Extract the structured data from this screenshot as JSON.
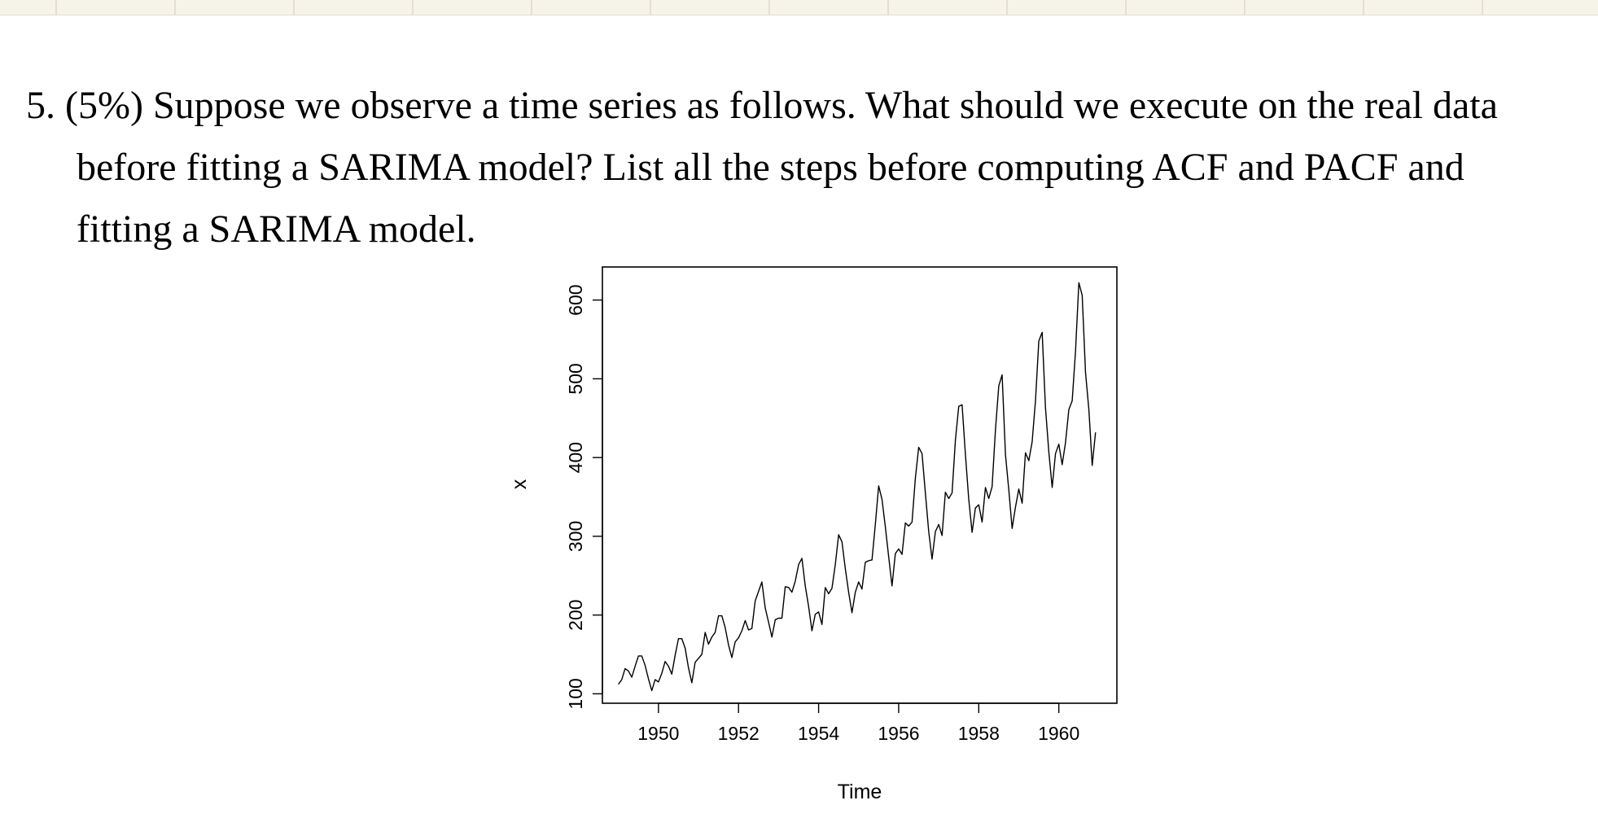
{
  "question": {
    "line1": "5. (5%) Suppose we observe a time series as follows. What should we execute on the real data",
    "line2": "before fitting a SARIMA model? List all the steps before computing ACF and PACF and",
    "line3": "fitting a SARIMA model."
  },
  "chart_data": {
    "type": "line",
    "title": "",
    "xlabel": "Time",
    "ylabel": "x",
    "xlim": [
      1948.6,
      1961.45
    ],
    "ylim": [
      88,
      642
    ],
    "x_ticks": [
      "1950",
      "1952",
      "1954",
      "1956",
      "1958",
      "1960"
    ],
    "y_ticks": [
      "100",
      "200",
      "300",
      "400",
      "500",
      "600"
    ],
    "grid": false,
    "legend": "none",
    "x_start": 1949,
    "frequency": 12,
    "series": [
      {
        "values": [
          112,
          118,
          132,
          129,
          121,
          135,
          148,
          148,
          136,
          119,
          104,
          118,
          115,
          126,
          141,
          135,
          125,
          149,
          170,
          170,
          158,
          133,
          114,
          140,
          145,
          150,
          178,
          163,
          172,
          178,
          199,
          199,
          184,
          162,
          146,
          166,
          171,
          180,
          193,
          181,
          183,
          218,
          230,
          242,
          209,
          191,
          172,
          194,
          196,
          196,
          236,
          235,
          229,
          243,
          264,
          272,
          237,
          211,
          180,
          201,
          204,
          188,
          235,
          227,
          234,
          264,
          302,
          293,
          259,
          229,
          203,
          229,
          242,
          233,
          267,
          269,
          270,
          315,
          364,
          347,
          312,
          274,
          237,
          278,
          284,
          277,
          317,
          313,
          318,
          374,
          413,
          405,
          355,
          306,
          271,
          306,
          315,
          301,
          356,
          348,
          355,
          422,
          465,
          467,
          404,
          347,
          305,
          336,
          340,
          318,
          362,
          348,
          363,
          435,
          491,
          505,
          404,
          359,
          310,
          337,
          360,
          342,
          406,
          396,
          420,
          472,
          548,
          559,
          463,
          407,
          362,
          405,
          417,
          391,
          419,
          461,
          472,
          535,
          622,
          606,
          508,
          461,
          390,
          432
        ]
      }
    ]
  }
}
